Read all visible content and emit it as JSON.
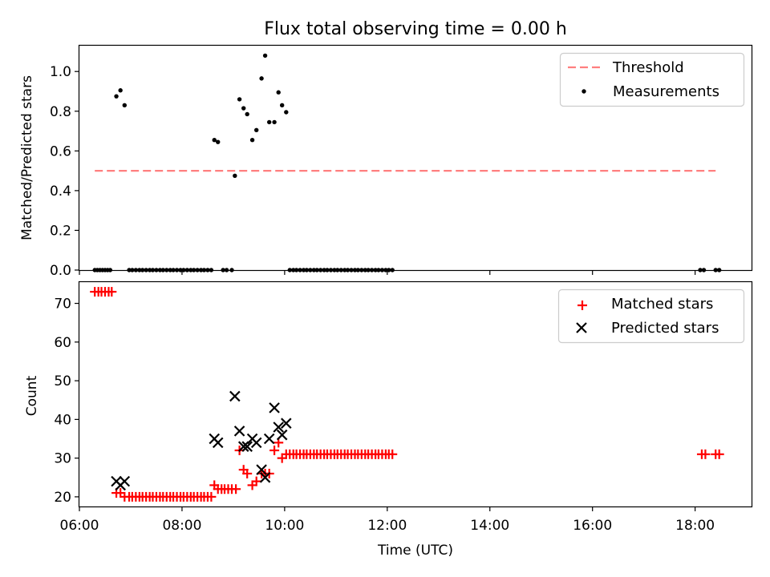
{
  "figure": {
    "title": "Flux total observing time = 0.00 h",
    "xlabel": "Time (UTC)",
    "xticks": [
      "06:00",
      "08:00",
      "10:00",
      "12:00",
      "14:00",
      "16:00",
      "18:00"
    ]
  },
  "chart_data": [
    {
      "type": "scatter",
      "ylabel": "Matched/Predicted stars",
      "xlim": [
        6.0,
        19.1
      ],
      "ylim": [
        0,
        1.13
      ],
      "yticks": [
        "0.0",
        "0.2",
        "0.4",
        "0.6",
        "0.8",
        "1.0"
      ],
      "legend": "top-right",
      "threshold": {
        "name": "Threshold",
        "value": 0.5,
        "x": [
          6.3,
          18.4
        ],
        "color": "#ff7f7f"
      },
      "series": [
        {
          "name": "Measurements",
          "color": "#000000",
          "points": [
            [
              6.3,
              0
            ],
            [
              6.35,
              0
            ],
            [
              6.4,
              0
            ],
            [
              6.45,
              0
            ],
            [
              6.5,
              0
            ],
            [
              6.55,
              0
            ],
            [
              6.6,
              0
            ],
            [
              6.72,
              0.875
            ],
            [
              6.8,
              0.905
            ],
            [
              6.88,
              0.83
            ],
            [
              6.97,
              0
            ],
            [
              7.03,
              0
            ],
            [
              7.1,
              0
            ],
            [
              7.17,
              0
            ],
            [
              7.23,
              0
            ],
            [
              7.3,
              0
            ],
            [
              7.37,
              0
            ],
            [
              7.43,
              0
            ],
            [
              7.5,
              0
            ],
            [
              7.57,
              0
            ],
            [
              7.63,
              0
            ],
            [
              7.7,
              0
            ],
            [
              7.77,
              0
            ],
            [
              7.83,
              0
            ],
            [
              7.9,
              0
            ],
            [
              7.97,
              0
            ],
            [
              8.03,
              0
            ],
            [
              8.1,
              0
            ],
            [
              8.17,
              0
            ],
            [
              8.23,
              0
            ],
            [
              8.3,
              0
            ],
            [
              8.37,
              0
            ],
            [
              8.43,
              0
            ],
            [
              8.5,
              0
            ],
            [
              8.57,
              0
            ],
            [
              8.63,
              0.655
            ],
            [
              8.7,
              0.645
            ],
            [
              8.8,
              0
            ],
            [
              8.87,
              0
            ],
            [
              8.97,
              0
            ],
            [
              9.03,
              0.475
            ],
            [
              9.12,
              0.86
            ],
            [
              9.2,
              0.815
            ],
            [
              9.27,
              0.785
            ],
            [
              9.37,
              0.655
            ],
            [
              9.45,
              0.705
            ],
            [
              9.55,
              0.965
            ],
            [
              9.62,
              1.08
            ],
            [
              9.7,
              0.745
            ],
            [
              9.8,
              0.745
            ],
            [
              9.88,
              0.895
            ],
            [
              9.95,
              0.83
            ],
            [
              10.03,
              0.795
            ],
            [
              10.1,
              0
            ],
            [
              10.17,
              0
            ],
            [
              10.23,
              0
            ],
            [
              10.3,
              0
            ],
            [
              10.37,
              0
            ],
            [
              10.43,
              0
            ],
            [
              10.5,
              0
            ],
            [
              10.57,
              0
            ],
            [
              10.63,
              0
            ],
            [
              10.7,
              0
            ],
            [
              10.77,
              0
            ],
            [
              10.83,
              0
            ],
            [
              10.9,
              0
            ],
            [
              10.97,
              0
            ],
            [
              11.03,
              0
            ],
            [
              11.1,
              0
            ],
            [
              11.17,
              0
            ],
            [
              11.23,
              0
            ],
            [
              11.3,
              0
            ],
            [
              11.37,
              0
            ],
            [
              11.43,
              0
            ],
            [
              11.5,
              0
            ],
            [
              11.57,
              0
            ],
            [
              11.63,
              0
            ],
            [
              11.7,
              0
            ],
            [
              11.77,
              0
            ],
            [
              11.83,
              0
            ],
            [
              11.9,
              0
            ],
            [
              11.97,
              0
            ],
            [
              12.03,
              0
            ],
            [
              12.1,
              0
            ],
            [
              18.1,
              0
            ],
            [
              18.17,
              0
            ],
            [
              18.4,
              0
            ],
            [
              18.47,
              0
            ]
          ]
        }
      ]
    },
    {
      "type": "scatter",
      "ylabel": "Count",
      "xlim": [
        6.0,
        19.1
      ],
      "ylim": [
        17.5,
        75.5
      ],
      "yticks": [
        "20",
        "30",
        "40",
        "50",
        "60",
        "70"
      ],
      "legend": "top-right",
      "series": [
        {
          "name": "Matched stars",
          "marker": "plus",
          "color": "#ff0000",
          "points": [
            [
              6.3,
              73
            ],
            [
              6.37,
              73
            ],
            [
              6.43,
              73
            ],
            [
              6.5,
              73
            ],
            [
              6.57,
              73
            ],
            [
              6.63,
              73
            ],
            [
              6.72,
              21
            ],
            [
              6.8,
              21
            ],
            [
              6.88,
              20
            ],
            [
              6.97,
              20
            ],
            [
              7.03,
              20
            ],
            [
              7.1,
              20
            ],
            [
              7.17,
              20
            ],
            [
              7.23,
              20
            ],
            [
              7.3,
              20
            ],
            [
              7.37,
              20
            ],
            [
              7.43,
              20
            ],
            [
              7.5,
              20
            ],
            [
              7.57,
              20
            ],
            [
              7.63,
              20
            ],
            [
              7.7,
              20
            ],
            [
              7.77,
              20
            ],
            [
              7.83,
              20
            ],
            [
              7.9,
              20
            ],
            [
              7.97,
              20
            ],
            [
              8.03,
              20
            ],
            [
              8.1,
              20
            ],
            [
              8.17,
              20
            ],
            [
              8.23,
              20
            ],
            [
              8.3,
              20
            ],
            [
              8.37,
              20
            ],
            [
              8.43,
              20
            ],
            [
              8.5,
              20
            ],
            [
              8.57,
              20
            ],
            [
              8.63,
              23
            ],
            [
              8.7,
              22
            ],
            [
              8.77,
              22
            ],
            [
              8.83,
              22
            ],
            [
              8.9,
              22
            ],
            [
              8.97,
              22
            ],
            [
              9.05,
              22
            ],
            [
              9.12,
              32
            ],
            [
              9.2,
              27
            ],
            [
              9.27,
              26
            ],
            [
              9.37,
              23
            ],
            [
              9.45,
              24
            ],
            [
              9.55,
              26
            ],
            [
              9.62,
              26
            ],
            [
              9.7,
              26
            ],
            [
              9.8,
              32
            ],
            [
              9.88,
              34
            ],
            [
              9.95,
              30
            ],
            [
              10.03,
              31
            ],
            [
              10.1,
              31
            ],
            [
              10.17,
              31
            ],
            [
              10.23,
              31
            ],
            [
              10.3,
              31
            ],
            [
              10.37,
              31
            ],
            [
              10.43,
              31
            ],
            [
              10.5,
              31
            ],
            [
              10.57,
              31
            ],
            [
              10.63,
              31
            ],
            [
              10.7,
              31
            ],
            [
              10.77,
              31
            ],
            [
              10.83,
              31
            ],
            [
              10.9,
              31
            ],
            [
              10.97,
              31
            ],
            [
              11.03,
              31
            ],
            [
              11.1,
              31
            ],
            [
              11.17,
              31
            ],
            [
              11.23,
              31
            ],
            [
              11.3,
              31
            ],
            [
              11.37,
              31
            ],
            [
              11.43,
              31
            ],
            [
              11.5,
              31
            ],
            [
              11.57,
              31
            ],
            [
              11.63,
              31
            ],
            [
              11.7,
              31
            ],
            [
              11.77,
              31
            ],
            [
              11.83,
              31
            ],
            [
              11.9,
              31
            ],
            [
              11.97,
              31
            ],
            [
              12.03,
              31
            ],
            [
              12.1,
              31
            ],
            [
              18.13,
              31
            ],
            [
              18.2,
              31
            ],
            [
              18.4,
              31
            ],
            [
              18.47,
              31
            ]
          ]
        },
        {
          "name": "Predicted stars",
          "marker": "x",
          "color": "#000000",
          "points": [
            [
              6.72,
              24
            ],
            [
              6.8,
              23
            ],
            [
              6.88,
              24
            ],
            [
              8.63,
              35
            ],
            [
              8.7,
              34
            ],
            [
              9.03,
              46
            ],
            [
              9.12,
              37
            ],
            [
              9.2,
              33
            ],
            [
              9.27,
              33
            ],
            [
              9.37,
              35
            ],
            [
              9.45,
              34
            ],
            [
              9.55,
              27
            ],
            [
              9.62,
              25
            ],
            [
              9.7,
              35
            ],
            [
              9.8,
              43
            ],
            [
              9.88,
              38
            ],
            [
              9.95,
              36
            ],
            [
              10.03,
              39
            ]
          ]
        }
      ]
    }
  ]
}
